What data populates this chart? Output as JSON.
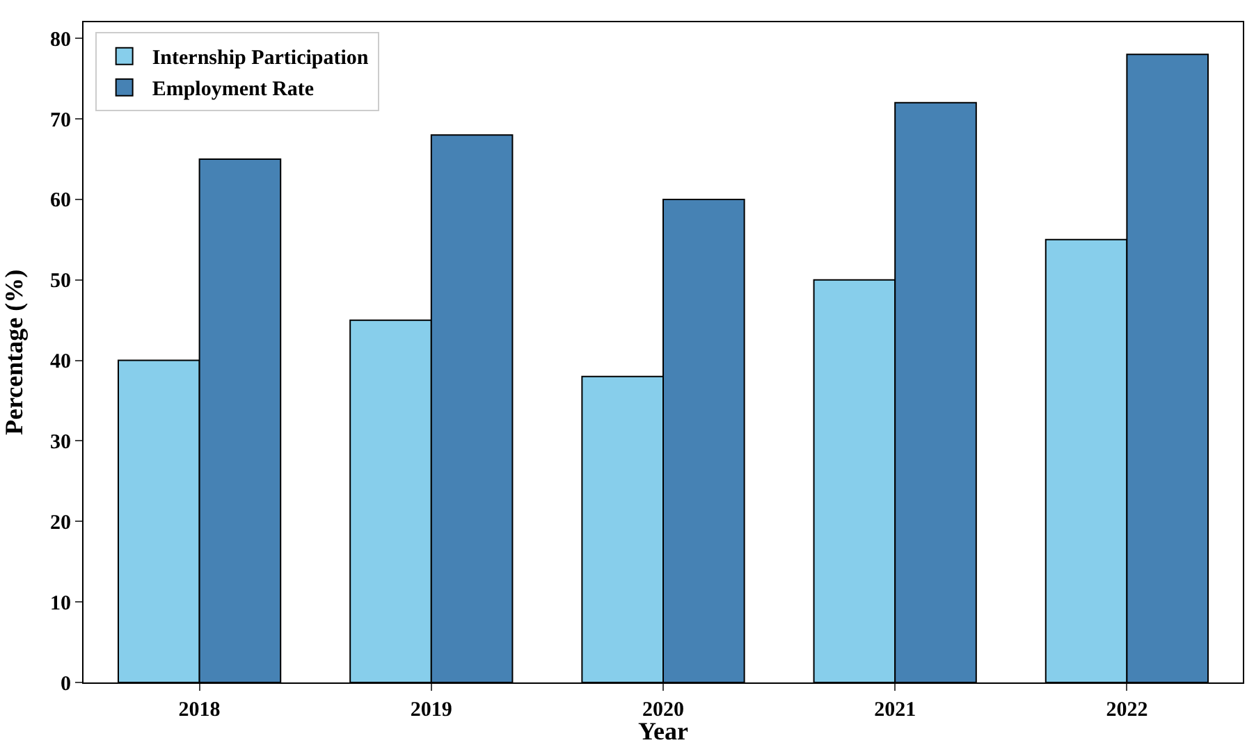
{
  "chart_data": {
    "type": "bar",
    "xlabel": "Year",
    "ylabel": "Percentage (%)",
    "categories": [
      "2018",
      "2019",
      "2020",
      "2021",
      "2022"
    ],
    "series": [
      {
        "name": "Internship Participation",
        "color": "#87ceeb",
        "values": [
          40,
          45,
          38,
          50,
          55
        ]
      },
      {
        "name": "Employment Rate",
        "color": "#4682b4",
        "values": [
          65,
          68,
          60,
          72,
          78
        ]
      }
    ],
    "ylim": [
      0,
      82
    ],
    "yticks": [
      0,
      10,
      20,
      30,
      40,
      50,
      60,
      70,
      80
    ],
    "grid": false,
    "legend": "top left"
  }
}
